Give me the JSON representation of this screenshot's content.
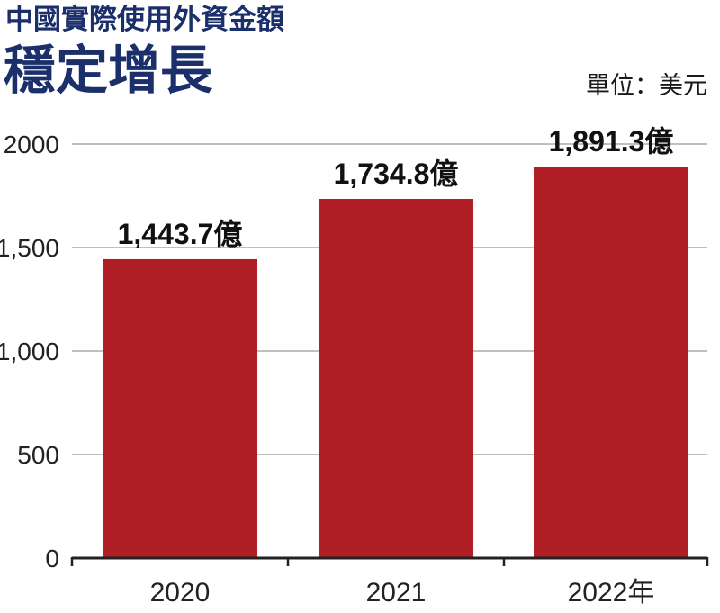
{
  "chart_data": {
    "type": "bar",
    "subtitle": "中國實際使用外資金額",
    "title": "穩定增長",
    "unit": "單位：美元",
    "categories": [
      "2020",
      "2021",
      "2022年"
    ],
    "values": [
      1443.7,
      1734.8,
      1891.3
    ],
    "data_labels": [
      "1,443.7億",
      "1,734.8億",
      "1,891.3億"
    ],
    "xlabel": "",
    "ylabel": "",
    "ylim": [
      0,
      2000
    ],
    "yticks": [
      0,
      500,
      1000,
      1500,
      2000
    ],
    "ytick_labels": [
      "0",
      "500",
      "1,000",
      "1,500",
      "2000"
    ],
    "grid": true,
    "bar_color": "#b01e26",
    "grid_color": "#999999",
    "axis_color": "#222222"
  }
}
